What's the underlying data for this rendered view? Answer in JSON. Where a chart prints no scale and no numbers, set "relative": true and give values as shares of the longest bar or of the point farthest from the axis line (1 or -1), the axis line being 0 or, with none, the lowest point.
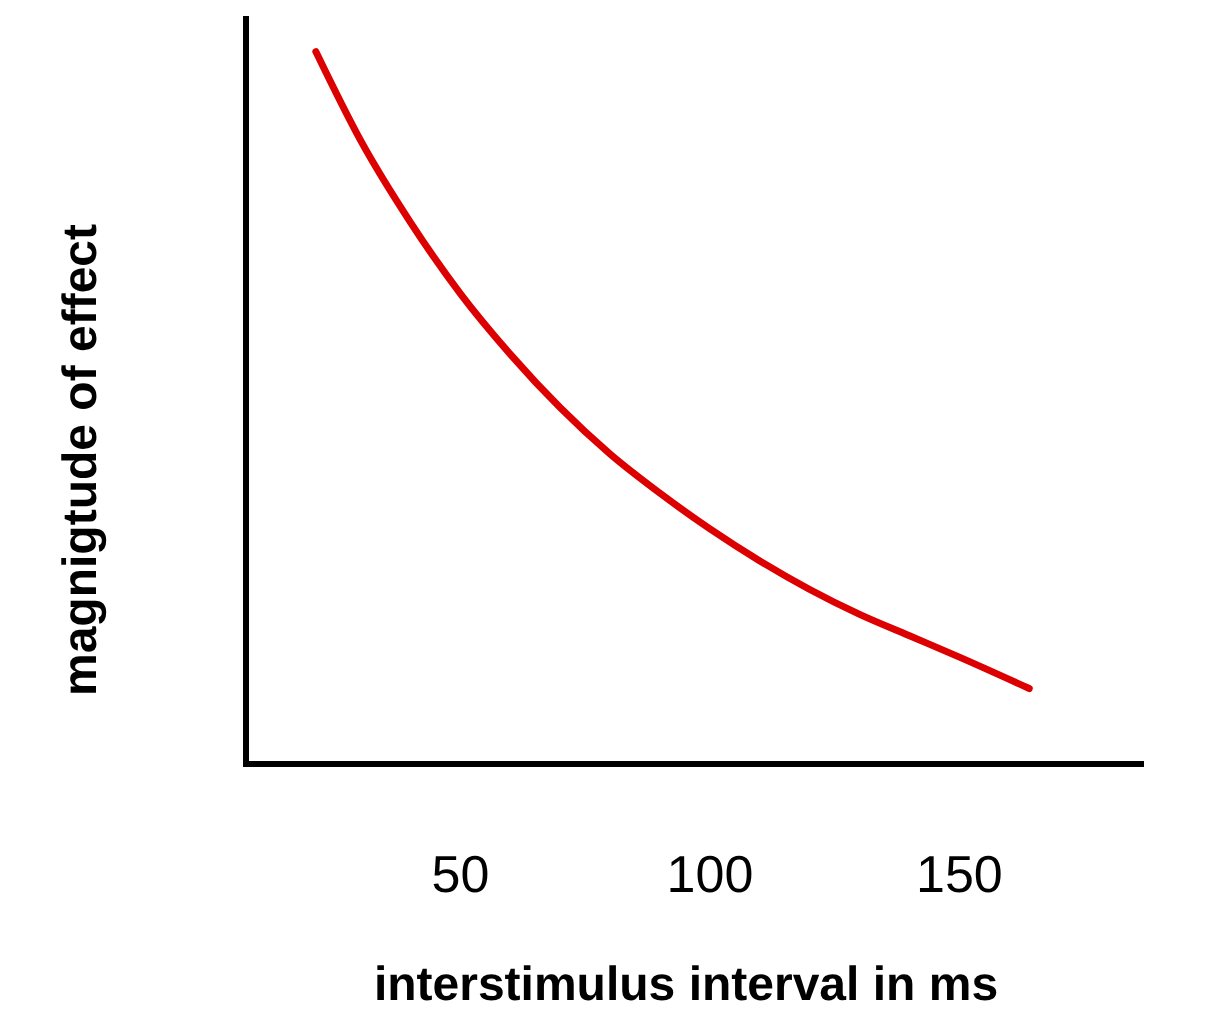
{
  "chart_data": {
    "type": "line",
    "relative": true,
    "xlabel": "interstimulus interval in ms",
    "ylabel": "magnigtude of effect",
    "xlim": [
      7,
      187
    ],
    "xticks": [
      50,
      100,
      150
    ],
    "grid": false,
    "marker": "none",
    "line_style": "solid",
    "series": [
      {
        "color": "#dd0000",
        "x": [
          21,
          30,
          40,
          50,
          60,
          70,
          80,
          90,
          100,
          110,
          120,
          130,
          140,
          150,
          164
        ],
        "values": [
          1.0,
          0.875,
          0.76,
          0.66,
          0.575,
          0.5,
          0.435,
          0.38,
          0.33,
          0.285,
          0.245,
          0.21,
          0.18,
          0.15,
          0.106
        ]
      }
    ]
  }
}
